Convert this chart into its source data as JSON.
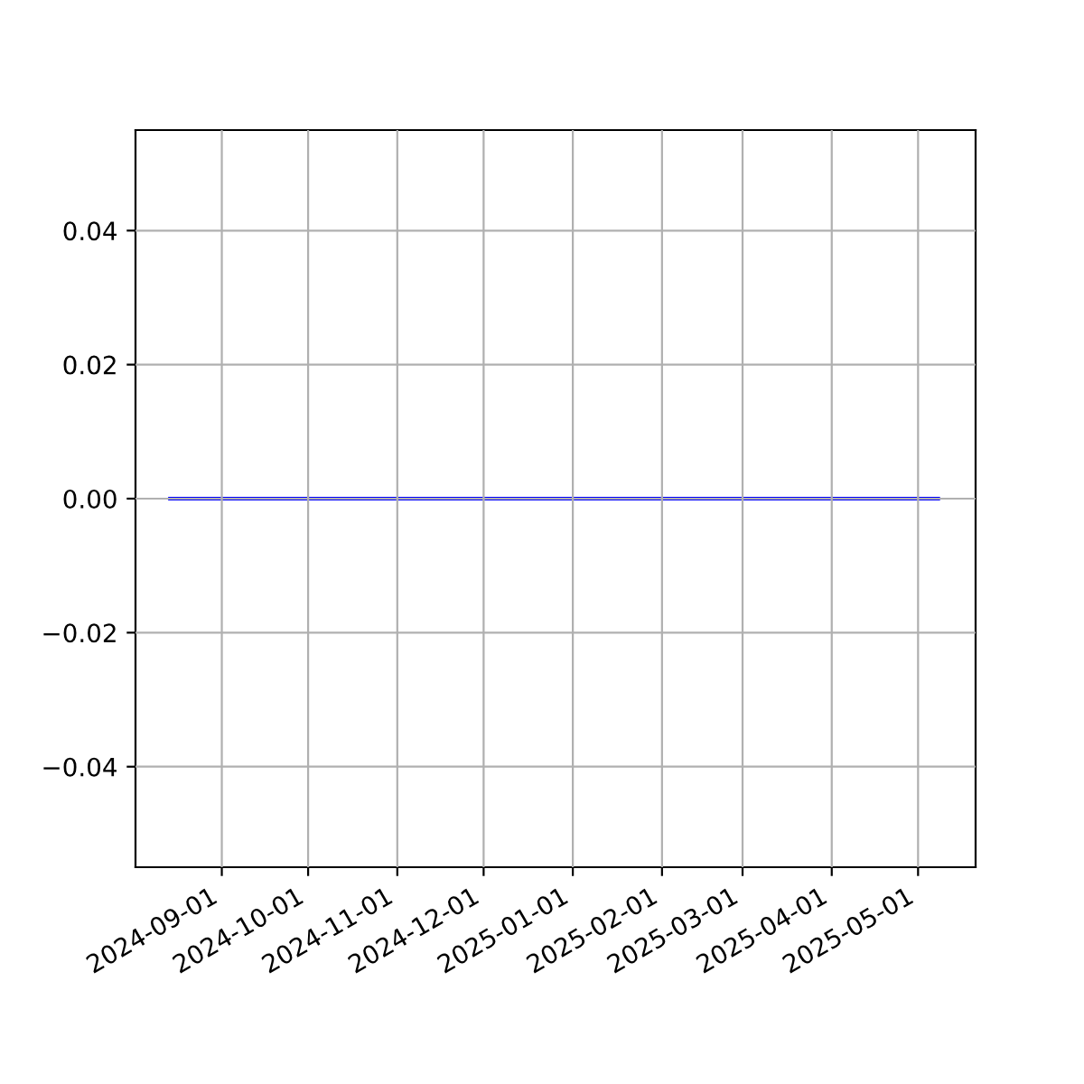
{
  "chart_data": {
    "type": "line",
    "x": [
      "2024-08-14",
      "2025-05-08"
    ],
    "series": [
      {
        "color": "#0000ff",
        "values": [
          0,
          0
        ]
      }
    ],
    "xlim": [
      "2024-08-02",
      "2025-05-21"
    ],
    "xticks": [
      "2024-09-01",
      "2024-10-01",
      "2024-11-01",
      "2024-12-01",
      "2025-01-01",
      "2025-02-01",
      "2025-03-01",
      "2025-04-01",
      "2025-05-01"
    ],
    "ylim": [
      -0.055,
      0.055
    ],
    "yticks": [
      {
        "value": -0.04,
        "label": "−0.04"
      },
      {
        "value": -0.02,
        "label": "−0.02"
      },
      {
        "value": 0,
        "label": "0.00"
      },
      {
        "value": 0.02,
        "label": "0.02"
      },
      {
        "value": 0.04,
        "label": "0.04"
      }
    ],
    "grid": true
  }
}
